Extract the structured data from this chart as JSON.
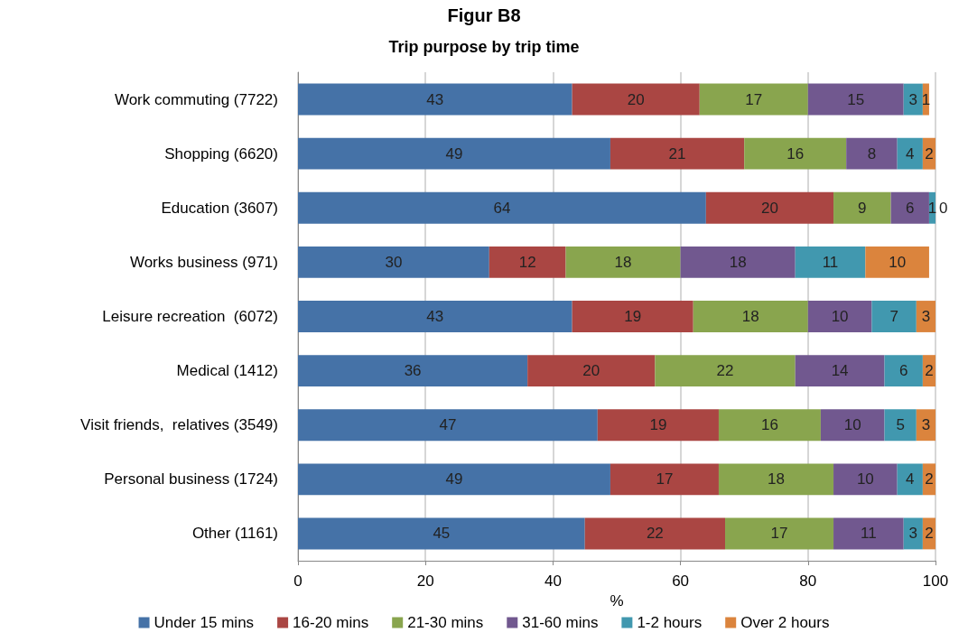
{
  "chart_data": {
    "type": "bar",
    "title": "Figur B8",
    "subtitle": "Trip purpose by trip time",
    "xlabel": "%",
    "orientation": "horizontal",
    "stacked": true,
    "data_labels": true,
    "grid": "x",
    "legend": "bottom",
    "categories": [
      "Work commuting (7722)",
      "Shopping (6620)",
      "Education (3607)",
      "Works business (971)",
      "Leisure recreation  (6072)",
      "Medical (1412)",
      "Visit friends,  relatives (3549)",
      "Personal business (1724)",
      "Other (1161)"
    ],
    "xlim": [
      0,
      100
    ],
    "xticks": [
      0,
      20,
      40,
      60,
      80,
      100
    ],
    "series": [
      {
        "name": "Under 15 mins",
        "color": "#4572a7",
        "values": [
          43,
          49,
          64,
          30,
          43,
          36,
          47,
          49,
          45
        ]
      },
      {
        "name": "16-20 mins",
        "color": "#aa4643",
        "values": [
          20,
          21,
          20,
          12,
          19,
          20,
          19,
          17,
          22
        ]
      },
      {
        "name": "21-30 mins",
        "color": "#89a54e",
        "values": [
          17,
          16,
          9,
          18,
          18,
          22,
          16,
          18,
          17
        ]
      },
      {
        "name": "31-60 mins",
        "color": "#71588f",
        "values": [
          15,
          8,
          6,
          18,
          10,
          14,
          10,
          10,
          11
        ]
      },
      {
        "name": "1-2 hours",
        "color": "#4198af",
        "values": [
          3,
          4,
          1,
          11,
          7,
          6,
          5,
          4,
          3
        ]
      },
      {
        "name": "Over 2 hours",
        "color": "#db843d",
        "values": [
          1,
          2,
          0,
          10,
          3,
          2,
          3,
          2,
          2
        ]
      }
    ]
  }
}
